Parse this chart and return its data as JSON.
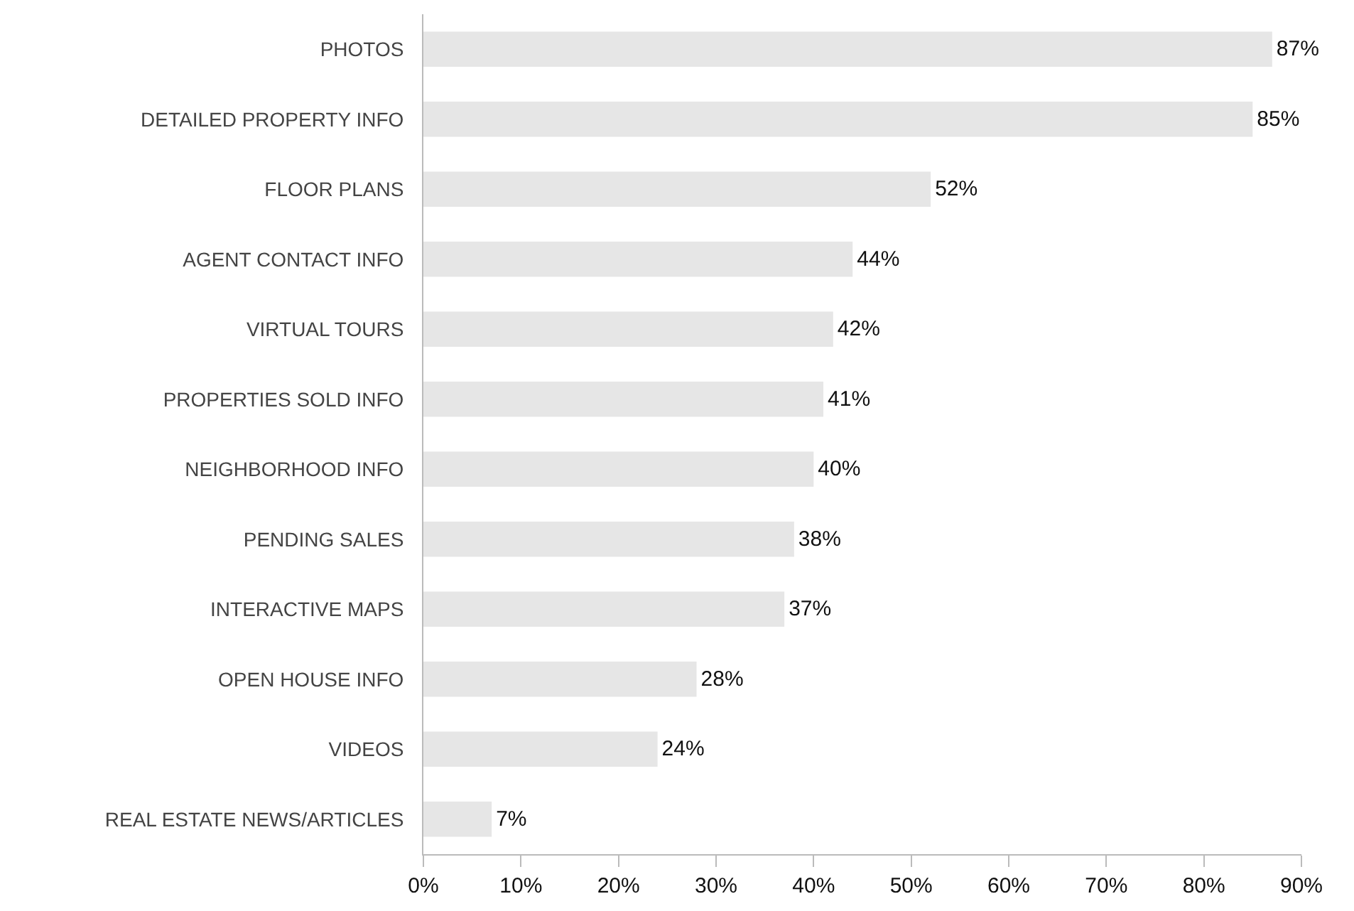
{
  "chart_data": {
    "type": "bar",
    "orientation": "horizontal",
    "categories": [
      "PHOTOS",
      "DETAILED PROPERTY INFO",
      "FLOOR PLANS",
      "AGENT CONTACT INFO",
      "VIRTUAL TOURS",
      "PROPERTIES SOLD INFO",
      "NEIGHBORHOOD INFO",
      "PENDING SALES",
      "INTERACTIVE MAPS",
      "OPEN HOUSE INFO",
      "VIDEOS",
      "REAL ESTATE NEWS/ARTICLES"
    ],
    "values": [
      87,
      85,
      52,
      44,
      42,
      41,
      40,
      38,
      37,
      28,
      24,
      7
    ],
    "value_labels": [
      "87%",
      "85%",
      "52%",
      "44%",
      "42%",
      "41%",
      "40%",
      "38%",
      "37%",
      "28%",
      "24%",
      "7%"
    ],
    "color": "#e6e6e6",
    "xlim": [
      0,
      90
    ],
    "xticks": [
      {
        "value": 0,
        "label": "0%"
      },
      {
        "value": 10,
        "label": "10%"
      },
      {
        "value": 20,
        "label": "20%"
      },
      {
        "value": 30,
        "label": "30%"
      },
      {
        "value": 40,
        "label": "40%"
      },
      {
        "value": 50,
        "label": "50%"
      },
      {
        "value": 60,
        "label": "60%"
      },
      {
        "value": 70,
        "label": "70%"
      },
      {
        "value": 80,
        "label": "80%"
      },
      {
        "value": 90,
        "label": "90%"
      }
    ]
  }
}
